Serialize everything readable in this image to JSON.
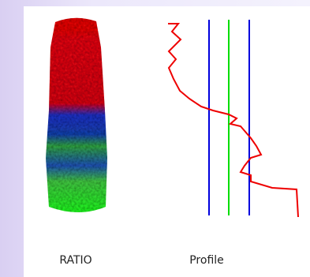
{
  "labels": {
    "ratio": "RATIO",
    "profile": "Profile"
  }
}
